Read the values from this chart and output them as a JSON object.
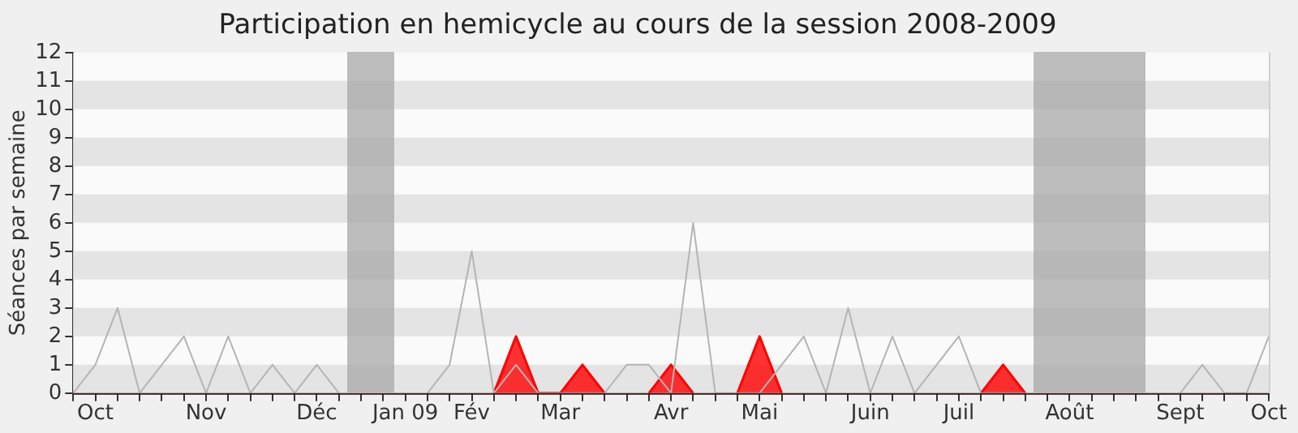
{
  "chart_data": {
    "type": "line",
    "title": "Participation en hemicycle au cours de la session 2008-2009",
    "ylabel": "Séances par semaine",
    "categories": [
      null,
      "Oct",
      null,
      null,
      null,
      null,
      "Nov",
      null,
      null,
      null,
      null,
      "Déc",
      null,
      null,
      null,
      "Jan 09",
      null,
      null,
      "Fév",
      null,
      null,
      null,
      "Mar",
      null,
      null,
      null,
      null,
      "Avr",
      null,
      null,
      null,
      "Mai",
      null,
      null,
      null,
      null,
      "Juin",
      null,
      null,
      null,
      "Juil",
      null,
      null,
      null,
      null,
      "Août",
      null,
      null,
      null,
      null,
      "Sept",
      null,
      null,
      null,
      "Oct"
    ],
    "series": [
      {
        "color": "#b4b4b4",
        "values": [
          0,
          1,
          3,
          0,
          1,
          2,
          0,
          2,
          0,
          1,
          0,
          1,
          0,
          null,
          null,
          null,
          0,
          1,
          5,
          0,
          1,
          0,
          0,
          0,
          0,
          1,
          1,
          0,
          6,
          0,
          0,
          0,
          1,
          2,
          0,
          3,
          0,
          2,
          0,
          1,
          2,
          0,
          0,
          0,
          null,
          null,
          null,
          null,
          null,
          null,
          0,
          1,
          0,
          0,
          2
        ]
      },
      {
        "type": "area",
        "color": "#ff0000",
        "values": [
          null,
          null,
          null,
          null,
          null,
          null,
          null,
          null,
          null,
          null,
          null,
          null,
          null,
          null,
          null,
          null,
          null,
          null,
          null,
          0,
          2,
          0,
          0,
          1,
          0,
          null,
          0,
          1,
          0,
          null,
          0,
          2,
          0,
          null,
          null,
          null,
          null,
          null,
          null,
          null,
          null,
          0,
          1,
          0,
          null,
          null,
          null,
          null,
          null,
          null,
          null,
          null,
          null,
          null,
          null
        ]
      }
    ],
    "ylim": [
      0,
      12
    ],
    "yticks": [
      0,
      1,
      2,
      3,
      4,
      5,
      6,
      7,
      8,
      9,
      10,
      11,
      12
    ],
    "marker": "none"
  }
}
